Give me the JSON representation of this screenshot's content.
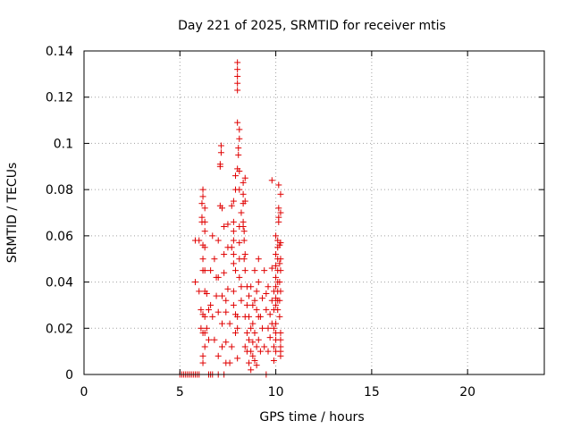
{
  "chart_data": {
    "type": "scatter",
    "title": "Day 221 of 2025, SRMTID for receiver mtis",
    "xlabel": "GPS time / hours",
    "ylabel": "SRMTID / TECUs",
    "xlim": [
      0,
      24
    ],
    "ylim": [
      0,
      0.14
    ],
    "x_ticks": [
      0,
      5,
      10,
      15,
      20
    ],
    "x_tick_labels": [
      "0",
      "5",
      "10",
      "15",
      "20"
    ],
    "y_ticks": [
      0,
      0.02,
      0.04,
      0.06,
      0.08,
      0.1,
      0.12,
      0.14
    ],
    "y_tick_labels": [
      "0",
      "0.02",
      "0.04",
      "0.06",
      "0.08",
      "0.1",
      "0.12",
      "0.14"
    ],
    "grid": true,
    "marker": "+",
    "series": [
      {
        "name": "SRMTID",
        "color": "#e00000",
        "points": [
          [
            5.0,
            0
          ],
          [
            5.1,
            0
          ],
          [
            5.2,
            0
          ],
          [
            5.3,
            0
          ],
          [
            5.4,
            0
          ],
          [
            5.5,
            0
          ],
          [
            5.6,
            0
          ],
          [
            5.7,
            0
          ],
          [
            5.8,
            0
          ],
          [
            5.9,
            0
          ],
          [
            6.0,
            0
          ],
          [
            6.5,
            0
          ],
          [
            6.6,
            0
          ],
          [
            6.7,
            0
          ],
          [
            7.0,
            0
          ],
          [
            7.3,
            0
          ],
          [
            9.5,
            0
          ],
          [
            5.8,
            0.04
          ],
          [
            5.8,
            0.058
          ],
          [
            6.0,
            0.058
          ],
          [
            6.0,
            0.036
          ],
          [
            6.1,
            0.028
          ],
          [
            6.1,
            0.02
          ],
          [
            6.2,
            0.005
          ],
          [
            6.2,
            0.008
          ],
          [
            6.2,
            0.018
          ],
          [
            6.2,
            0.026
          ],
          [
            6.2,
            0.045
          ],
          [
            6.2,
            0.05
          ],
          [
            6.2,
            0.056
          ],
          [
            6.15,
            0.066
          ],
          [
            6.15,
            0.068
          ],
          [
            6.15,
            0.074
          ],
          [
            6.2,
            0.077
          ],
          [
            6.2,
            0.08
          ],
          [
            6.3,
            0.072
          ],
          [
            6.3,
            0.066
          ],
          [
            6.3,
            0.062
          ],
          [
            6.3,
            0.055
          ],
          [
            6.3,
            0.045
          ],
          [
            6.3,
            0.036
          ],
          [
            6.3,
            0.025
          ],
          [
            6.3,
            0.018
          ],
          [
            6.3,
            0.012
          ],
          [
            6.4,
            0.035
          ],
          [
            6.4,
            0.02
          ],
          [
            6.5,
            0.028
          ],
          [
            6.5,
            0.015
          ],
          [
            6.6,
            0.045
          ],
          [
            6.6,
            0.03
          ],
          [
            6.7,
            0.025
          ],
          [
            6.8,
            0.015
          ],
          [
            6.7,
            0.06
          ],
          [
            6.8,
            0.05
          ],
          [
            6.9,
            0.042
          ],
          [
            6.9,
            0.034
          ],
          [
            7.0,
            0.027
          ],
          [
            7.0,
            0.008
          ],
          [
            7.0,
            0.042
          ],
          [
            7.0,
            0.058
          ],
          [
            7.1,
            0.073
          ],
          [
            7.1,
            0.09
          ],
          [
            7.1,
            0.091
          ],
          [
            7.15,
            0.096
          ],
          [
            7.15,
            0.099
          ],
          [
            7.2,
            0.072
          ],
          [
            7.2,
            0.012
          ],
          [
            7.2,
            0.022
          ],
          [
            7.2,
            0.034
          ],
          [
            7.3,
            0.052
          ],
          [
            7.3,
            0.044
          ],
          [
            7.3,
            0.064
          ],
          [
            7.4,
            0.032
          ],
          [
            7.4,
            0.027
          ],
          [
            7.4,
            0.014
          ],
          [
            7.4,
            0.005
          ],
          [
            7.5,
            0.065
          ],
          [
            7.5,
            0.055
          ],
          [
            7.5,
            0.037
          ],
          [
            7.6,
            0.022
          ],
          [
            7.6,
            0.005
          ],
          [
            7.7,
            0.012
          ],
          [
            7.7,
            0.055
          ],
          [
            7.7,
            0.073
          ],
          [
            7.8,
            0.075
          ],
          [
            7.8,
            0.066
          ],
          [
            7.8,
            0.062
          ],
          [
            7.8,
            0.058
          ],
          [
            7.8,
            0.052
          ],
          [
            7.8,
            0.048
          ],
          [
            7.8,
            0.036
          ],
          [
            7.8,
            0.03
          ],
          [
            7.9,
            0.086
          ],
          [
            7.9,
            0.08
          ],
          [
            7.9,
            0.045
          ],
          [
            7.9,
            0.026
          ],
          [
            7.9,
            0.018
          ],
          [
            8.0,
            0.025
          ],
          [
            8.0,
            0.02
          ],
          [
            8.0,
            0.007
          ],
          [
            8.0,
            0.123
          ],
          [
            8.0,
            0.126
          ],
          [
            8.0,
            0.129
          ],
          [
            8.0,
            0.132
          ],
          [
            8.0,
            0.135
          ],
          [
            8.0,
            0.109
          ],
          [
            8.05,
            0.098
          ],
          [
            8.05,
            0.095
          ],
          [
            8.1,
            0.102
          ],
          [
            8.1,
            0.106
          ],
          [
            8.0,
            0.089
          ],
          [
            8.1,
            0.088
          ],
          [
            8.1,
            0.08
          ],
          [
            8.1,
            0.064
          ],
          [
            8.1,
            0.057
          ],
          [
            8.1,
            0.05
          ],
          [
            8.1,
            0.042
          ],
          [
            8.2,
            0.038
          ],
          [
            8.2,
            0.032
          ],
          [
            8.2,
            0.07
          ],
          [
            8.3,
            0.083
          ],
          [
            8.3,
            0.078
          ],
          [
            8.3,
            0.074
          ],
          [
            8.3,
            0.066
          ],
          [
            8.3,
            0.064
          ],
          [
            8.35,
            0.062
          ],
          [
            8.35,
            0.058
          ],
          [
            8.35,
            0.05
          ],
          [
            8.4,
            0.085
          ],
          [
            8.4,
            0.052
          ],
          [
            8.4,
            0.045
          ],
          [
            8.4,
            0.025
          ],
          [
            8.4,
            0.012
          ],
          [
            8.4,
            0.075
          ],
          [
            8.5,
            0.038
          ],
          [
            8.5,
            0.03
          ],
          [
            8.5,
            0.018
          ],
          [
            8.5,
            0.01
          ],
          [
            8.6,
            0.034
          ],
          [
            8.6,
            0.025
          ],
          [
            8.6,
            0.015
          ],
          [
            8.6,
            0.005
          ],
          [
            8.7,
            0.038
          ],
          [
            8.7,
            0.02
          ],
          [
            8.7,
            0.01
          ],
          [
            8.7,
            0.002
          ],
          [
            8.8,
            0.03
          ],
          [
            8.8,
            0.022
          ],
          [
            8.8,
            0.014
          ],
          [
            8.8,
            0.008
          ],
          [
            8.9,
            0.045
          ],
          [
            8.9,
            0.032
          ],
          [
            8.9,
            0.018
          ],
          [
            8.9,
            0.006
          ],
          [
            9.0,
            0.036
          ],
          [
            9.0,
            0.028
          ],
          [
            9.0,
            0.012
          ],
          [
            9.0,
            0.004
          ],
          [
            9.1,
            0.05
          ],
          [
            9.1,
            0.04
          ],
          [
            9.1,
            0.025
          ],
          [
            9.1,
            0.015
          ],
          [
            9.2,
            0.025
          ],
          [
            9.2,
            0.01
          ],
          [
            9.3,
            0.033
          ],
          [
            9.3,
            0.02
          ],
          [
            9.4,
            0.045
          ],
          [
            9.4,
            0.012
          ],
          [
            9.5,
            0.028
          ],
          [
            9.5,
            0.035
          ],
          [
            9.6,
            0.038
          ],
          [
            9.6,
            0.02
          ],
          [
            9.6,
            0.01
          ],
          [
            9.7,
            0.026
          ],
          [
            9.7,
            0.016
          ],
          [
            9.8,
            0.022
          ],
          [
            9.8,
            0.032
          ],
          [
            9.8,
            0.046
          ],
          [
            9.8,
            0.084
          ],
          [
            9.9,
            0.036
          ],
          [
            9.9,
            0.028
          ],
          [
            9.9,
            0.02
          ],
          [
            9.9,
            0.012
          ],
          [
            9.9,
            0.006
          ],
          [
            10.0,
            0.06
          ],
          [
            10.0,
            0.052
          ],
          [
            10.0,
            0.047
          ],
          [
            10.0,
            0.042
          ],
          [
            10.0,
            0.038
          ],
          [
            10.0,
            0.033
          ],
          [
            10.0,
            0.03
          ],
          [
            10.0,
            0.022
          ],
          [
            10.0,
            0.018
          ],
          [
            10.0,
            0.015
          ],
          [
            10.0,
            0.01
          ],
          [
            10.1,
            0.058
          ],
          [
            10.1,
            0.055
          ],
          [
            10.1,
            0.05
          ],
          [
            10.1,
            0.045
          ],
          [
            10.1,
            0.04
          ],
          [
            10.1,
            0.036
          ],
          [
            10.1,
            0.032
          ],
          [
            10.1,
            0.028
          ],
          [
            10.15,
            0.082
          ],
          [
            10.15,
            0.072
          ],
          [
            10.15,
            0.068
          ],
          [
            10.15,
            0.066
          ],
          [
            10.2,
            0.056
          ],
          [
            10.2,
            0.048
          ],
          [
            10.2,
            0.04
          ],
          [
            10.2,
            0.032
          ],
          [
            10.2,
            0.025
          ],
          [
            10.25,
            0.078
          ],
          [
            10.25,
            0.07
          ],
          [
            10.25,
            0.057
          ],
          [
            10.25,
            0.05
          ],
          [
            10.25,
            0.045
          ],
          [
            10.25,
            0.036
          ],
          [
            10.25,
            0.018
          ],
          [
            10.25,
            0.015
          ],
          [
            10.25,
            0.012
          ],
          [
            10.25,
            0.01
          ],
          [
            10.25,
            0.008
          ]
        ]
      }
    ]
  }
}
